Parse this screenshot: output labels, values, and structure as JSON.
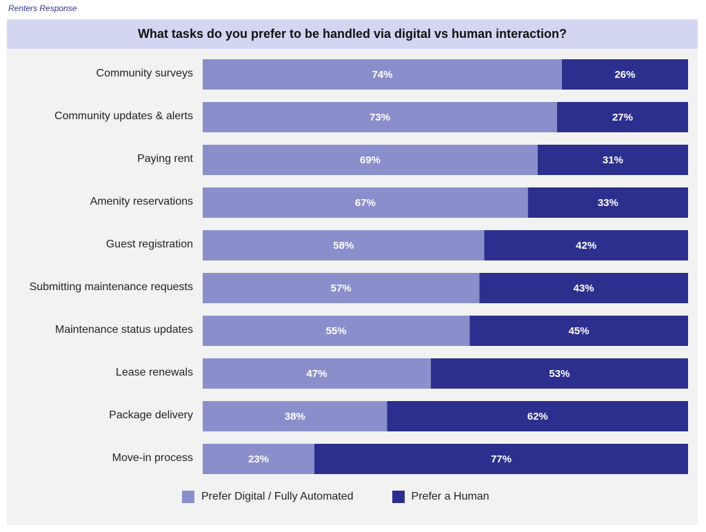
{
  "header": {
    "source_label": "Renters Response"
  },
  "chart_data": {
    "type": "bar",
    "orientation": "horizontal",
    "stacked": true,
    "title": "What tasks do you prefer to be handled via digital vs human interaction?",
    "categories": [
      "Community surveys",
      "Community updates & alerts",
      "Paying rent",
      "Amenity reservations",
      "Guest registration",
      "Submitting maintenance requests",
      "Maintenance status updates",
      "Lease renewals",
      "Package delivery",
      "Move-in process"
    ],
    "series": [
      {
        "name": "Prefer Digital / Fully Automated",
        "color": "#8a8fcb",
        "values": [
          74,
          73,
          69,
          67,
          58,
          57,
          55,
          47,
          38,
          23
        ]
      },
      {
        "name": "Prefer a Human",
        "color": "#2d2f8e",
        "values": [
          26,
          27,
          31,
          33,
          42,
          43,
          45,
          53,
          62,
          77
        ]
      }
    ],
    "unit": "%",
    "xlim": [
      0,
      100
    ],
    "legend": "bottom",
    "grid": false
  }
}
